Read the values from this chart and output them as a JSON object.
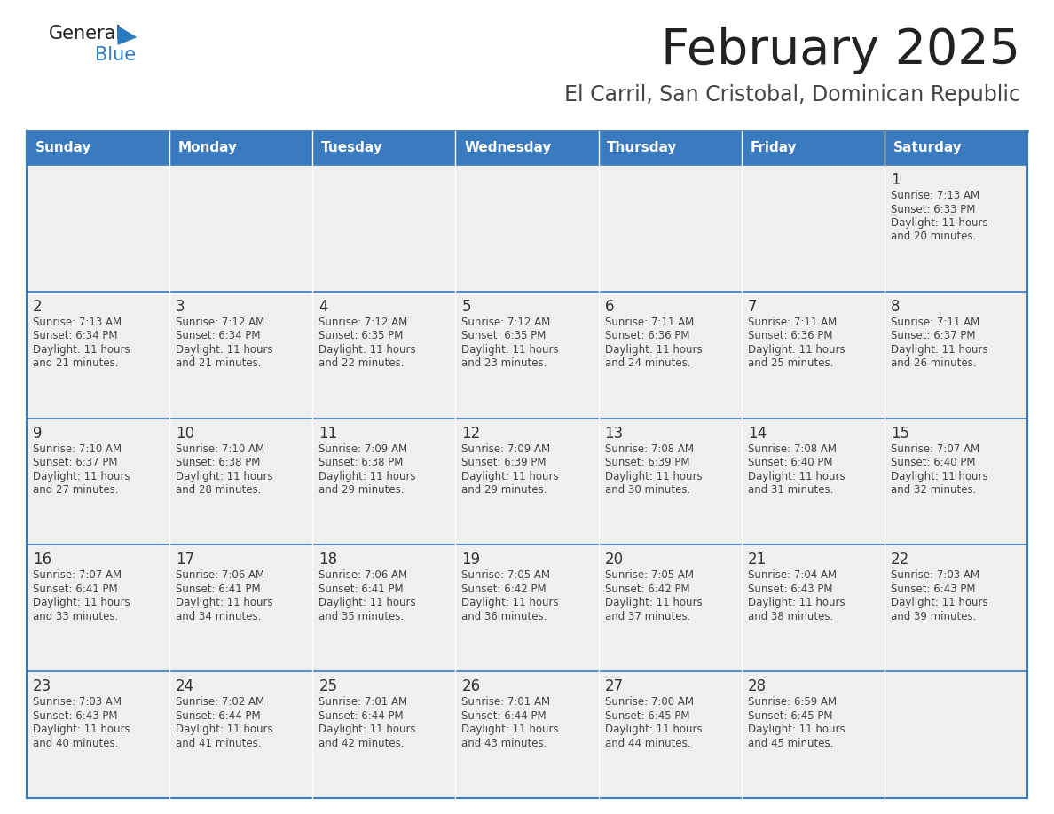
{
  "title": "February 2025",
  "subtitle": "El Carril, San Cristobal, Dominican Republic",
  "days_of_week": [
    "Sunday",
    "Monday",
    "Tuesday",
    "Wednesday",
    "Thursday",
    "Friday",
    "Saturday"
  ],
  "header_bg_color": "#3a7abf",
  "header_text_color": "#ffffff",
  "cell_bg_color": "#efefef",
  "border_color": "#3a7abf",
  "day_num_color": "#333333",
  "cell_text_color": "#444444",
  "title_color": "#222222",
  "subtitle_color": "#444444",
  "logo_general_color": "#222222",
  "logo_blue_color": "#2a7abf",
  "weeks": [
    [
      null,
      null,
      null,
      null,
      null,
      null,
      1
    ],
    [
      2,
      3,
      4,
      5,
      6,
      7,
      8
    ],
    [
      9,
      10,
      11,
      12,
      13,
      14,
      15
    ],
    [
      16,
      17,
      18,
      19,
      20,
      21,
      22
    ],
    [
      23,
      24,
      25,
      26,
      27,
      28,
      null
    ]
  ],
  "cell_data": {
    "1": {
      "sunrise": "7:13 AM",
      "sunset": "6:33 PM",
      "daylight": "11 hours",
      "daylight2": "and 20 minutes."
    },
    "2": {
      "sunrise": "7:13 AM",
      "sunset": "6:34 PM",
      "daylight": "11 hours",
      "daylight2": "and 21 minutes."
    },
    "3": {
      "sunrise": "7:12 AM",
      "sunset": "6:34 PM",
      "daylight": "11 hours",
      "daylight2": "and 21 minutes."
    },
    "4": {
      "sunrise": "7:12 AM",
      "sunset": "6:35 PM",
      "daylight": "11 hours",
      "daylight2": "and 22 minutes."
    },
    "5": {
      "sunrise": "7:12 AM",
      "sunset": "6:35 PM",
      "daylight": "11 hours",
      "daylight2": "and 23 minutes."
    },
    "6": {
      "sunrise": "7:11 AM",
      "sunset": "6:36 PM",
      "daylight": "11 hours",
      "daylight2": "and 24 minutes."
    },
    "7": {
      "sunrise": "7:11 AM",
      "sunset": "6:36 PM",
      "daylight": "11 hours",
      "daylight2": "and 25 minutes."
    },
    "8": {
      "sunrise": "7:11 AM",
      "sunset": "6:37 PM",
      "daylight": "11 hours",
      "daylight2": "and 26 minutes."
    },
    "9": {
      "sunrise": "7:10 AM",
      "sunset": "6:37 PM",
      "daylight": "11 hours",
      "daylight2": "and 27 minutes."
    },
    "10": {
      "sunrise": "7:10 AM",
      "sunset": "6:38 PM",
      "daylight": "11 hours",
      "daylight2": "and 28 minutes."
    },
    "11": {
      "sunrise": "7:09 AM",
      "sunset": "6:38 PM",
      "daylight": "11 hours",
      "daylight2": "and 29 minutes."
    },
    "12": {
      "sunrise": "7:09 AM",
      "sunset": "6:39 PM",
      "daylight": "11 hours",
      "daylight2": "and 29 minutes."
    },
    "13": {
      "sunrise": "7:08 AM",
      "sunset": "6:39 PM",
      "daylight": "11 hours",
      "daylight2": "and 30 minutes."
    },
    "14": {
      "sunrise": "7:08 AM",
      "sunset": "6:40 PM",
      "daylight": "11 hours",
      "daylight2": "and 31 minutes."
    },
    "15": {
      "sunrise": "7:07 AM",
      "sunset": "6:40 PM",
      "daylight": "11 hours",
      "daylight2": "and 32 minutes."
    },
    "16": {
      "sunrise": "7:07 AM",
      "sunset": "6:41 PM",
      "daylight": "11 hours",
      "daylight2": "and 33 minutes."
    },
    "17": {
      "sunrise": "7:06 AM",
      "sunset": "6:41 PM",
      "daylight": "11 hours",
      "daylight2": "and 34 minutes."
    },
    "18": {
      "sunrise": "7:06 AM",
      "sunset": "6:41 PM",
      "daylight": "11 hours",
      "daylight2": "and 35 minutes."
    },
    "19": {
      "sunrise": "7:05 AM",
      "sunset": "6:42 PM",
      "daylight": "11 hours",
      "daylight2": "and 36 minutes."
    },
    "20": {
      "sunrise": "7:05 AM",
      "sunset": "6:42 PM",
      "daylight": "11 hours",
      "daylight2": "and 37 minutes."
    },
    "21": {
      "sunrise": "7:04 AM",
      "sunset": "6:43 PM",
      "daylight": "11 hours",
      "daylight2": "and 38 minutes."
    },
    "22": {
      "sunrise": "7:03 AM",
      "sunset": "6:43 PM",
      "daylight": "11 hours",
      "daylight2": "and 39 minutes."
    },
    "23": {
      "sunrise": "7:03 AM",
      "sunset": "6:43 PM",
      "daylight": "11 hours",
      "daylight2": "and 40 minutes."
    },
    "24": {
      "sunrise": "7:02 AM",
      "sunset": "6:44 PM",
      "daylight": "11 hours",
      "daylight2": "and 41 minutes."
    },
    "25": {
      "sunrise": "7:01 AM",
      "sunset": "6:44 PM",
      "daylight": "11 hours",
      "daylight2": "and 42 minutes."
    },
    "26": {
      "sunrise": "7:01 AM",
      "sunset": "6:44 PM",
      "daylight": "11 hours",
      "daylight2": "and 43 minutes."
    },
    "27": {
      "sunrise": "7:00 AM",
      "sunset": "6:45 PM",
      "daylight": "11 hours",
      "daylight2": "and 44 minutes."
    },
    "28": {
      "sunrise": "6:59 AM",
      "sunset": "6:45 PM",
      "daylight": "11 hours",
      "daylight2": "and 45 minutes."
    }
  }
}
